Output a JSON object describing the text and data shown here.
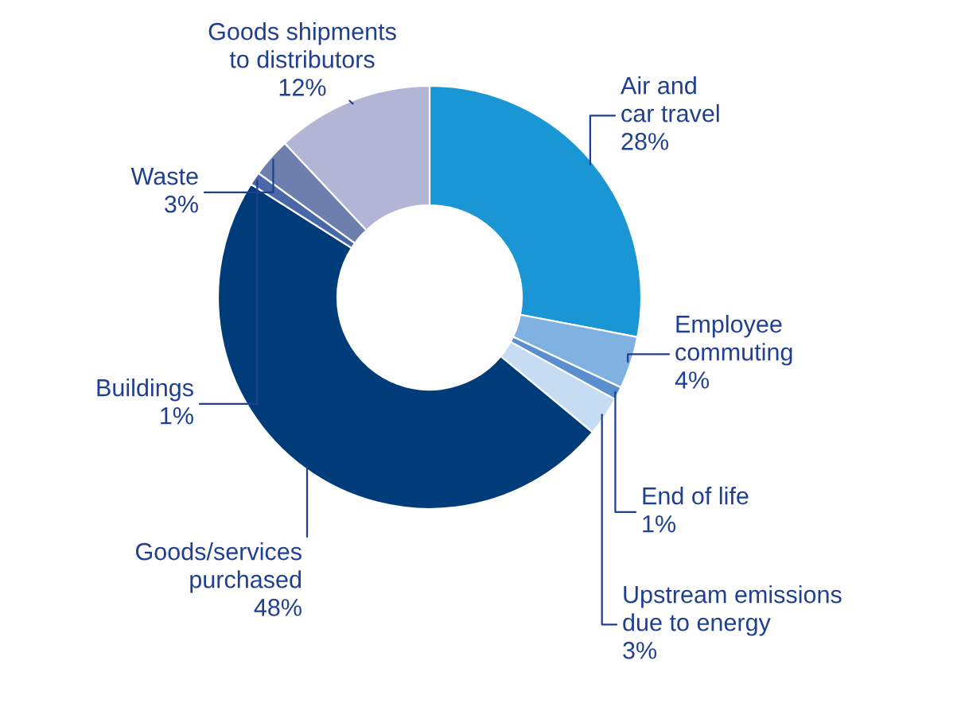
{
  "chart_data": {
    "type": "donut",
    "categories": [
      "Air and\ncar travel",
      "Employee\ncommuting",
      "End of life",
      "Upstream emissions\ndue to energy",
      "Goods/services\npurchased",
      "Buildings",
      "Waste",
      "Goods shipments\nto distributors"
    ],
    "values": [
      28,
      4,
      1,
      3,
      48,
      1,
      3,
      12
    ],
    "colors": [
      "#1a96d4",
      "#7fb2e0",
      "#5a8fcf",
      "#c6dcf2",
      "#003b7a",
      "#4a68a8",
      "#6f7fad",
      "#b3b5d6"
    ],
    "value_labels": [
      "28%",
      "4%",
      "1%",
      "3%",
      "48%",
      "1%",
      "3%",
      "12%"
    ]
  }
}
